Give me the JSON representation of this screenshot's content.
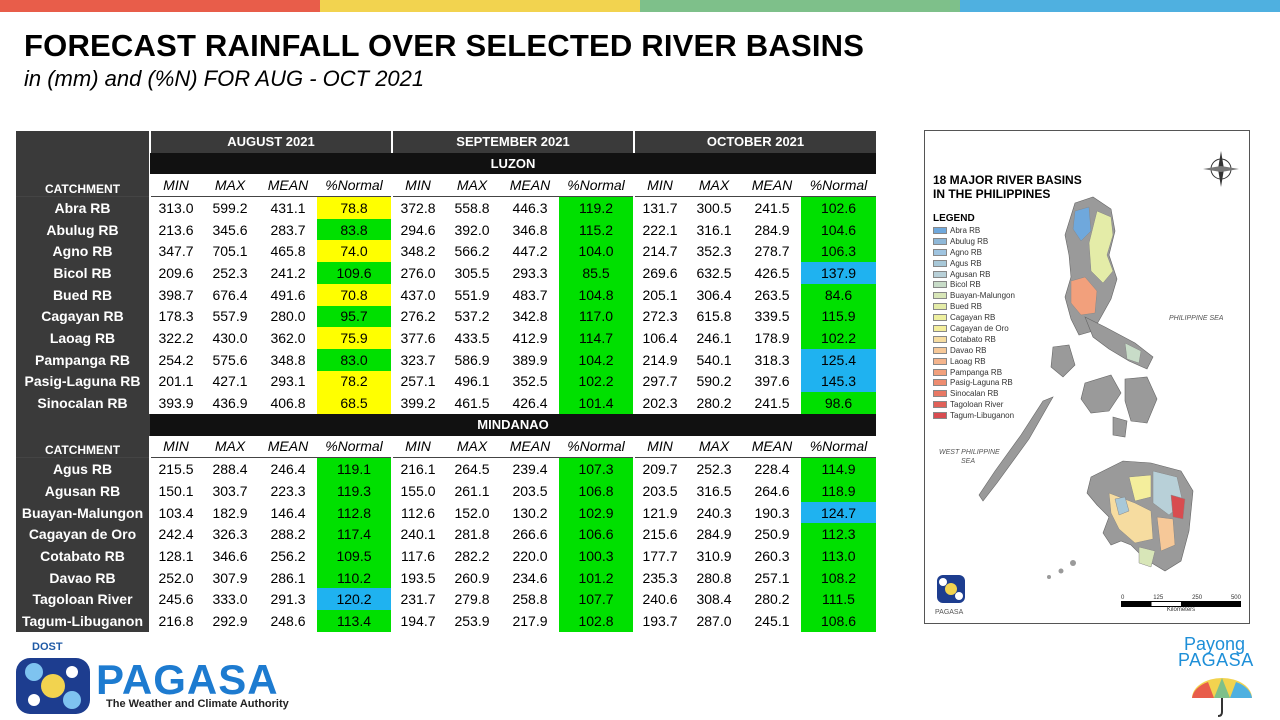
{
  "header": {
    "title": "FORECAST RAINFALL OVER SELECTED RIVER BASINS",
    "subtitle": "in (mm) and (%N) FOR  AUG - OCT 2021",
    "bar_colors": [
      "#e85d4a",
      "#f2d34f",
      "#7ec08a",
      "#4fb0e0"
    ]
  },
  "table": {
    "months": [
      "AUGUST 2021",
      "SEPTEMBER 2021",
      "OCTOBER 2021"
    ],
    "catchment_label": "CATCHMENT",
    "subheaders": [
      "MIN",
      "MAX",
      "MEAN",
      "%Normal"
    ],
    "colors": {
      "yellow": "#ffff00",
      "green": "#00e000",
      "blue": "#1fb2f0"
    },
    "regions": [
      {
        "name": "LUZON",
        "rows": [
          {
            "basin": "Abra RB",
            "aug": [
              "313.0",
              "599.2",
              "431.1",
              "78.8"
            ],
            "aug_c": "yellow",
            "sep": [
              "372.8",
              "558.8",
              "446.3",
              "119.2"
            ],
            "sep_c": "green",
            "oct": [
              "131.7",
              "300.5",
              "241.5",
              "102.6"
            ],
            "oct_c": "green"
          },
          {
            "basin": "Abulug RB",
            "aug": [
              "213.6",
              "345.6",
              "283.7",
              "83.8"
            ],
            "aug_c": "green",
            "sep": [
              "294.6",
              "392.0",
              "346.8",
              "115.2"
            ],
            "sep_c": "green",
            "oct": [
              "222.1",
              "316.1",
              "284.9",
              "104.6"
            ],
            "oct_c": "green"
          },
          {
            "basin": "Agno RB",
            "aug": [
              "347.7",
              "705.1",
              "465.8",
              "74.0"
            ],
            "aug_c": "yellow",
            "sep": [
              "348.2",
              "566.2",
              "447.2",
              "104.0"
            ],
            "sep_c": "green",
            "oct": [
              "214.7",
              "352.3",
              "278.7",
              "106.3"
            ],
            "oct_c": "green"
          },
          {
            "basin": "Bicol RB",
            "aug": [
              "209.6",
              "252.3",
              "241.2",
              "109.6"
            ],
            "aug_c": "green",
            "sep": [
              "276.0",
              "305.5",
              "293.3",
              "85.5"
            ],
            "sep_c": "green",
            "oct": [
              "269.6",
              "632.5",
              "426.5",
              "137.9"
            ],
            "oct_c": "blue"
          },
          {
            "basin": "Bued RB",
            "aug": [
              "398.7",
              "676.4",
              "491.6",
              "70.8"
            ],
            "aug_c": "yellow",
            "sep": [
              "437.0",
              "551.9",
              "483.7",
              "104.8"
            ],
            "sep_c": "green",
            "oct": [
              "205.1",
              "306.4",
              "263.5",
              "84.6"
            ],
            "oct_c": "green"
          },
          {
            "basin": "Cagayan RB",
            "aug": [
              "178.3",
              "557.9",
              "280.0",
              "95.7"
            ],
            "aug_c": "green",
            "sep": [
              "276.2",
              "537.2",
              "342.8",
              "117.0"
            ],
            "sep_c": "green",
            "oct": [
              "272.3",
              "615.8",
              "339.5",
              "115.9"
            ],
            "oct_c": "green"
          },
          {
            "basin": "Laoag RB",
            "aug": [
              "322.2",
              "430.0",
              "362.0",
              "75.9"
            ],
            "aug_c": "yellow",
            "sep": [
              "377.6",
              "433.5",
              "412.9",
              "114.7"
            ],
            "sep_c": "green",
            "oct": [
              "106.4",
              "246.1",
              "178.9",
              "102.2"
            ],
            "oct_c": "green"
          },
          {
            "basin": "Pampanga RB",
            "aug": [
              "254.2",
              "575.6",
              "348.8",
              "83.0"
            ],
            "aug_c": "green",
            "sep": [
              "323.7",
              "586.9",
              "389.9",
              "104.2"
            ],
            "sep_c": "green",
            "oct": [
              "214.9",
              "540.1",
              "318.3",
              "125.4"
            ],
            "oct_c": "blue"
          },
          {
            "basin": "Pasig-Laguna RB",
            "aug": [
              "201.1",
              "427.1",
              "293.1",
              "78.2"
            ],
            "aug_c": "yellow",
            "sep": [
              "257.1",
              "496.1",
              "352.5",
              "102.2"
            ],
            "sep_c": "green",
            "oct": [
              "297.7",
              "590.2",
              "397.6",
              "145.3"
            ],
            "oct_c": "blue"
          },
          {
            "basin": "Sinocalan RB",
            "aug": [
              "393.9",
              "436.9",
              "406.8",
              "68.5"
            ],
            "aug_c": "yellow",
            "sep": [
              "399.2",
              "461.5",
              "426.4",
              "101.4"
            ],
            "sep_c": "green",
            "oct": [
              "202.3",
              "280.2",
              "241.5",
              "98.6"
            ],
            "oct_c": "green"
          }
        ]
      },
      {
        "name": "MINDANAO",
        "rows": [
          {
            "basin": "Agus RB",
            "aug": [
              "215.5",
              "288.4",
              "246.4",
              "119.1"
            ],
            "aug_c": "green",
            "sep": [
              "216.1",
              "264.5",
              "239.4",
              "107.3"
            ],
            "sep_c": "green",
            "oct": [
              "209.7",
              "252.3",
              "228.4",
              "114.9"
            ],
            "oct_c": "green"
          },
          {
            "basin": "Agusan RB",
            "aug": [
              "150.1",
              "303.7",
              "223.3",
              "119.3"
            ],
            "aug_c": "green",
            "sep": [
              "155.0",
              "261.1",
              "203.5",
              "106.8"
            ],
            "sep_c": "green",
            "oct": [
              "203.5",
              "316.5",
              "264.6",
              "118.9"
            ],
            "oct_c": "green"
          },
          {
            "basin": "Buayan-Malungon",
            "aug": [
              "103.4",
              "182.9",
              "146.4",
              "112.8"
            ],
            "aug_c": "green",
            "sep": [
              "112.6",
              "152.0",
              "130.2",
              "102.9"
            ],
            "sep_c": "green",
            "oct": [
              "121.9",
              "240.3",
              "190.3",
              "124.7"
            ],
            "oct_c": "blue"
          },
          {
            "basin": "Cagayan de Oro",
            "aug": [
              "242.4",
              "326.3",
              "288.2",
              "117.4"
            ],
            "aug_c": "green",
            "sep": [
              "240.1",
              "281.8",
              "266.6",
              "106.6"
            ],
            "sep_c": "green",
            "oct": [
              "215.6",
              "284.9",
              "250.9",
              "112.3"
            ],
            "oct_c": "green"
          },
          {
            "basin": "Cotabato RB",
            "aug": [
              "128.1",
              "346.6",
              "256.2",
              "109.5"
            ],
            "aug_c": "green",
            "sep": [
              "117.6",
              "282.2",
              "220.0",
              "100.3"
            ],
            "sep_c": "green",
            "oct": [
              "177.7",
              "310.9",
              "260.3",
              "113.0"
            ],
            "oct_c": "green"
          },
          {
            "basin": "Davao RB",
            "aug": [
              "252.0",
              "307.9",
              "286.1",
              "110.2"
            ],
            "aug_c": "green",
            "sep": [
              "193.5",
              "260.9",
              "234.6",
              "101.2"
            ],
            "sep_c": "green",
            "oct": [
              "235.3",
              "280.8",
              "257.1",
              "108.2"
            ],
            "oct_c": "green"
          },
          {
            "basin": "Tagoloan River",
            "aug": [
              "245.6",
              "333.0",
              "291.3",
              "120.2"
            ],
            "aug_c": "blue",
            "sep": [
              "231.7",
              "279.8",
              "258.8",
              "107.7"
            ],
            "sep_c": "green",
            "oct": [
              "240.6",
              "308.4",
              "280.2",
              "111.5"
            ],
            "oct_c": "green"
          },
          {
            "basin": "Tagum-Libuganon",
            "aug": [
              "216.8",
              "292.9",
              "248.6",
              "113.4"
            ],
            "aug_c": "green",
            "sep": [
              "194.7",
              "253.9",
              "217.9",
              "102.8"
            ],
            "sep_c": "green",
            "oct": [
              "193.7",
              "287.0",
              "245.1",
              "108.6"
            ],
            "oct_c": "green"
          }
        ]
      }
    ]
  },
  "map": {
    "title_line1": "18 MAJOR RIVER BASINS",
    "title_line2": "IN THE PHILIPPINES",
    "legend_title": "LEGEND",
    "legend": [
      {
        "label": "Abra RB",
        "color": "#6fa8dc"
      },
      {
        "label": "Abulug RB",
        "color": "#8fb8d8"
      },
      {
        "label": "Agno RB",
        "color": "#9fc4e0"
      },
      {
        "label": "Agus RB",
        "color": "#a8c8d8"
      },
      {
        "label": "Agusan RB",
        "color": "#b8d0d8"
      },
      {
        "label": "Bicol RB",
        "color": "#c8dcc8"
      },
      {
        "label": "Buayan-Malungon",
        "color": "#d8e6b8"
      },
      {
        "label": "Bued RB",
        "color": "#e4eca8"
      },
      {
        "label": "Cagayan RB",
        "color": "#eef0a0"
      },
      {
        "label": "Cagayan de Oro",
        "color": "#f4ee9c"
      },
      {
        "label": "Cotabato RB",
        "color": "#f6dca0"
      },
      {
        "label": "Davao RB",
        "color": "#f6c898"
      },
      {
        "label": "Laoag RB",
        "color": "#f4b48c"
      },
      {
        "label": "Pampanga RB",
        "color": "#f2a07c"
      },
      {
        "label": "Pasig-Laguna RB",
        "color": "#ee8c70"
      },
      {
        "label": "Sinocalan RB",
        "color": "#e87864"
      },
      {
        "label": "Tagoloan River",
        "color": "#e06058"
      },
      {
        "label": "Tagum-Libuganon",
        "color": "#d84c50"
      }
    ],
    "sea_east": "PHILIPPINE SEA",
    "sea_west_1": "WEST PHILIPPINE",
    "sea_west_2": "SEA",
    "scale_labels": [
      "0",
      "125",
      "250",
      "500"
    ],
    "scale_unit": "Kilometers",
    "agency_small": "PAGASA"
  },
  "footer": {
    "dost": "DOST",
    "pagasa": "PAGASA",
    "tagline": "The Weather and Climate Authority",
    "payong_1": "Payong",
    "payong_2": "PAGASA"
  }
}
